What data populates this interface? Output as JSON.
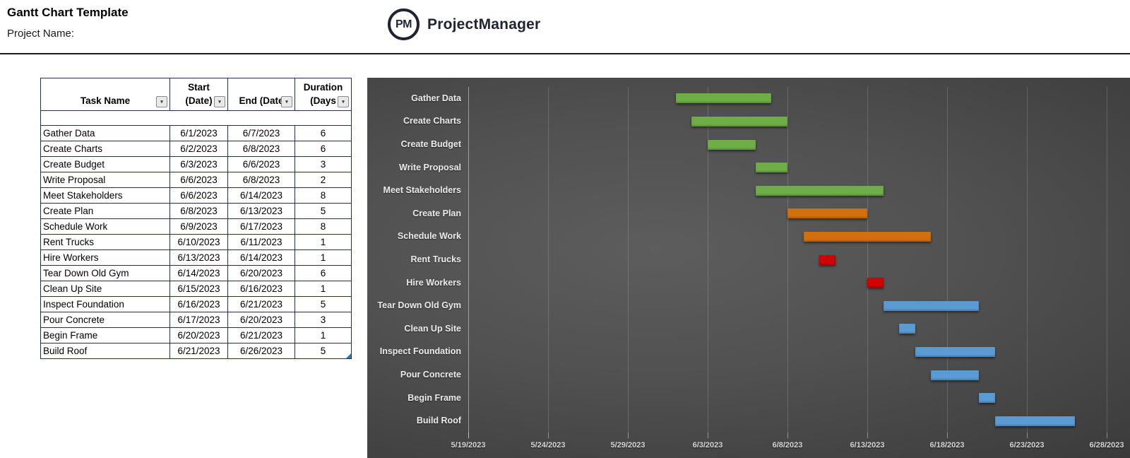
{
  "header": {
    "title": "Gantt Chart Template",
    "project_name_label": "Project Name:",
    "logo": {
      "monogram": "PM",
      "brand": "ProjectManager"
    }
  },
  "table": {
    "columns": [
      {
        "id": "task",
        "line1": "",
        "line2": "Task Name"
      },
      {
        "id": "start",
        "line1": "Start",
        "line2": "(Date)"
      },
      {
        "id": "end",
        "line1": "",
        "line2": "End  (Date"
      },
      {
        "id": "duration",
        "line1": "Duration",
        "line2": "(Days"
      }
    ],
    "rows": [
      {
        "task": "Gather Data",
        "start": "6/1/2023",
        "end": "6/7/2023",
        "duration": "6"
      },
      {
        "task": "Create Charts",
        "start": "6/2/2023",
        "end": "6/8/2023",
        "duration": "6"
      },
      {
        "task": "Create Budget",
        "start": "6/3/2023",
        "end": "6/6/2023",
        "duration": "3"
      },
      {
        "task": "Write Proposal",
        "start": "6/6/2023",
        "end": "6/8/2023",
        "duration": "2"
      },
      {
        "task": "Meet Stakeholders",
        "start": "6/6/2023",
        "end": "6/14/2023",
        "duration": "8"
      },
      {
        "task": "Create Plan",
        "start": "6/8/2023",
        "end": "6/13/2023",
        "duration": "5"
      },
      {
        "task": "Schedule Work",
        "start": "6/9/2023",
        "end": "6/17/2023",
        "duration": "8"
      },
      {
        "task": "Rent Trucks",
        "start": "6/10/2023",
        "end": "6/11/2023",
        "duration": "1"
      },
      {
        "task": "Hire Workers",
        "start": "6/13/2023",
        "end": "6/14/2023",
        "duration": "1"
      },
      {
        "task": "Tear Down Old Gym",
        "start": "6/14/2023",
        "end": "6/20/2023",
        "duration": "6"
      },
      {
        "task": "Clean Up Site",
        "start": "6/15/2023",
        "end": "6/16/2023",
        "duration": "1"
      },
      {
        "task": "Inspect Foundation",
        "start": "6/16/2023",
        "end": "6/21/2023",
        "duration": "5"
      },
      {
        "task": "Pour Concrete",
        "start": "6/17/2023",
        "end": "6/20/2023",
        "duration": "3"
      },
      {
        "task": "Begin Frame",
        "start": "6/20/2023",
        "end": "6/21/2023",
        "duration": "1"
      },
      {
        "task": "Build Roof",
        "start": "6/21/2023",
        "end": "6/26/2023",
        "duration": "5"
      }
    ]
  },
  "chart_data": {
    "type": "bar",
    "subtype": "gantt",
    "title": "",
    "xlabel": "",
    "ylabel": "",
    "grid": "vertical",
    "legend": "none",
    "axis": {
      "start_date": "5/19/2023",
      "end_date": "6/28/2023",
      "tick_interval_days": 5,
      "tick_labels": [
        "5/19/2023",
        "5/24/2023",
        "5/29/2023",
        "6/3/2023",
        "6/8/2023",
        "6/13/2023",
        "6/18/2023",
        "6/23/2023",
        "6/28/2023"
      ]
    },
    "colors": {
      "green": "#6FAE47",
      "orange": "#D2700F",
      "red": "#D40000",
      "blue": "#5B9BD5"
    },
    "tasks": [
      {
        "name": "Gather Data",
        "start": "6/1/2023",
        "end": "6/7/2023",
        "duration_days": 6,
        "color": "green"
      },
      {
        "name": "Create Charts",
        "start": "6/2/2023",
        "end": "6/8/2023",
        "duration_days": 6,
        "color": "green"
      },
      {
        "name": "Create Budget",
        "start": "6/3/2023",
        "end": "6/6/2023",
        "duration_days": 3,
        "color": "green"
      },
      {
        "name": "Write Proposal",
        "start": "6/6/2023",
        "end": "6/8/2023",
        "duration_days": 2,
        "color": "green"
      },
      {
        "name": "Meet Stakeholders",
        "start": "6/6/2023",
        "end": "6/14/2023",
        "duration_days": 8,
        "color": "green"
      },
      {
        "name": "Create Plan",
        "start": "6/8/2023",
        "end": "6/13/2023",
        "duration_days": 5,
        "color": "orange"
      },
      {
        "name": "Schedule Work",
        "start": "6/9/2023",
        "end": "6/17/2023",
        "duration_days": 8,
        "color": "orange"
      },
      {
        "name": "Rent Trucks",
        "start": "6/10/2023",
        "end": "6/11/2023",
        "duration_days": 1,
        "color": "red"
      },
      {
        "name": "Hire Workers",
        "start": "6/13/2023",
        "end": "6/14/2023",
        "duration_days": 1,
        "color": "red"
      },
      {
        "name": "Tear Down Old Gym",
        "start": "6/14/2023",
        "end": "6/20/2023",
        "duration_days": 6,
        "color": "blue"
      },
      {
        "name": "Clean Up Site",
        "start": "6/15/2023",
        "end": "6/16/2023",
        "duration_days": 1,
        "color": "blue"
      },
      {
        "name": "Inspect Foundation",
        "start": "6/16/2023",
        "end": "6/21/2023",
        "duration_days": 5,
        "color": "blue"
      },
      {
        "name": "Pour Concrete",
        "start": "6/17/2023",
        "end": "6/20/2023",
        "duration_days": 3,
        "color": "blue"
      },
      {
        "name": "Begin Frame",
        "start": "6/20/2023",
        "end": "6/21/2023",
        "duration_days": 1,
        "color": "blue"
      },
      {
        "name": "Build Roof",
        "start": "6/21/2023",
        "end": "6/26/2023",
        "duration_days": 5,
        "color": "blue"
      }
    ]
  }
}
